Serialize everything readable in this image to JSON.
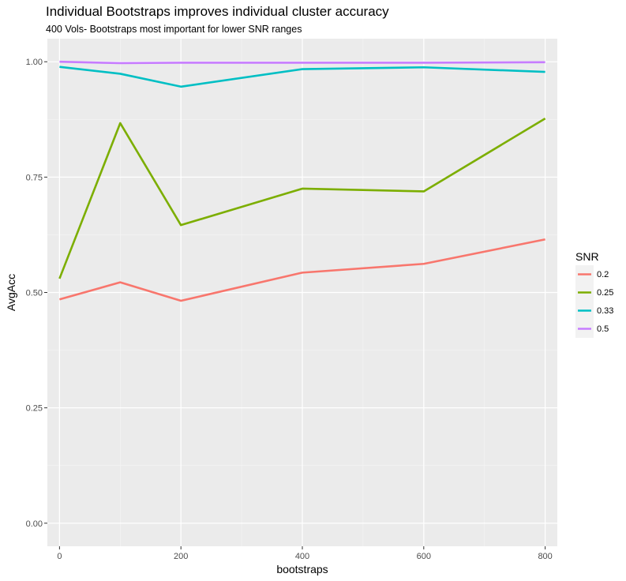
{
  "chart_data": {
    "type": "line",
    "title": "Individual Bootstraps improves individual cluster accuracy",
    "subtitle": "400 Vols- Bootstraps most important for lower SNR ranges",
    "xlabel": "bootstraps",
    "ylabel": "AvgAcc",
    "xlim": [
      -20,
      820
    ],
    "ylim": [
      -0.05,
      1.05
    ],
    "x_ticks": [
      0,
      200,
      400,
      600,
      800
    ],
    "x_tick_labels": [
      "0",
      "200",
      "400",
      "600",
      "800"
    ],
    "y_ticks": [
      0,
      0.25,
      0.5,
      0.75,
      1.0
    ],
    "y_tick_labels": [
      "0.00",
      "0.25",
      "0.50",
      "0.75",
      "1.00"
    ],
    "grid": true,
    "legend_title": "SNR",
    "legend_position": "right",
    "x": [
      0,
      100,
      200,
      400,
      600,
      800
    ],
    "series": [
      {
        "name": "0.2",
        "color": "#F8766D",
        "values": [
          0.485,
          0.522,
          0.482,
          0.543,
          0.562,
          0.615
        ]
      },
      {
        "name": "0.25",
        "color": "#7CAE00",
        "values": [
          0.53,
          0.867,
          0.646,
          0.725,
          0.719,
          0.877
        ]
      },
      {
        "name": "0.33",
        "color": "#00BFC4",
        "values": [
          0.989,
          0.974,
          0.946,
          0.984,
          0.988,
          0.978
        ]
      },
      {
        "name": "0.5",
        "color": "#C77CFF",
        "values": [
          1.0,
          0.997,
          0.998,
          0.998,
          0.998,
          0.999
        ]
      }
    ]
  }
}
